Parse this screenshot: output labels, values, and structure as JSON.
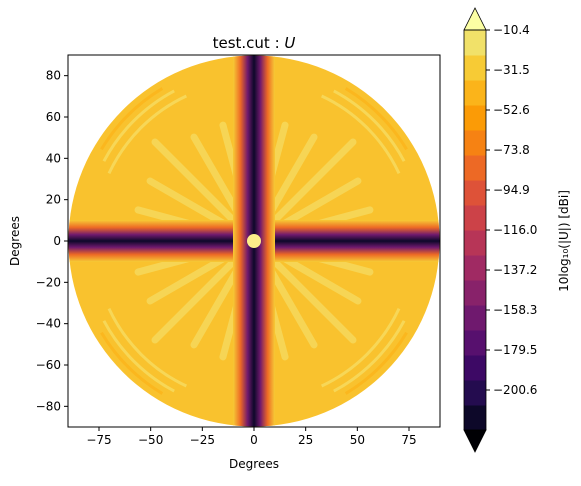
{
  "chart_data": {
    "type": "heatmap",
    "title_main": "test.cut : ",
    "title_var": "U",
    "xlabel": "Degrees",
    "ylabel": "Degrees",
    "xlim": [
      -90,
      90
    ],
    "ylim": [
      -90,
      90
    ],
    "xticks": [
      -75,
      -50,
      -25,
      0,
      25,
      50,
      75
    ],
    "yticks": [
      80,
      60,
      40,
      20,
      0,
      -20,
      -40,
      -60,
      -80
    ],
    "grid": false,
    "colorbar": {
      "label": "10log₁₀(|U|) [dBi]",
      "ticks": [
        "-10.4",
        "-31.5",
        "-52.6",
        "-73.8",
        "-94.9",
        "-116.0",
        "-137.2",
        "-158.3",
        "-179.5",
        "-200.6"
      ],
      "extend": "both",
      "colors": [
        "#000004",
        "#0d0829",
        "#240c4f",
        "#3d0965",
        "#57106e",
        "#6f196e",
        "#88226a",
        "#a02a63",
        "#b73557",
        "#cc4248",
        "#de5238",
        "#ed6925",
        "#f68213",
        "#fb9b06",
        "#fbb41a",
        "#f7cb35",
        "#f1e169",
        "#fcffa4"
      ]
    },
    "pattern": {
      "background_level": "-52.6",
      "null_axes": [
        "x = 0",
        "y = 0"
      ],
      "aperture_radius_deg": 90
    }
  }
}
